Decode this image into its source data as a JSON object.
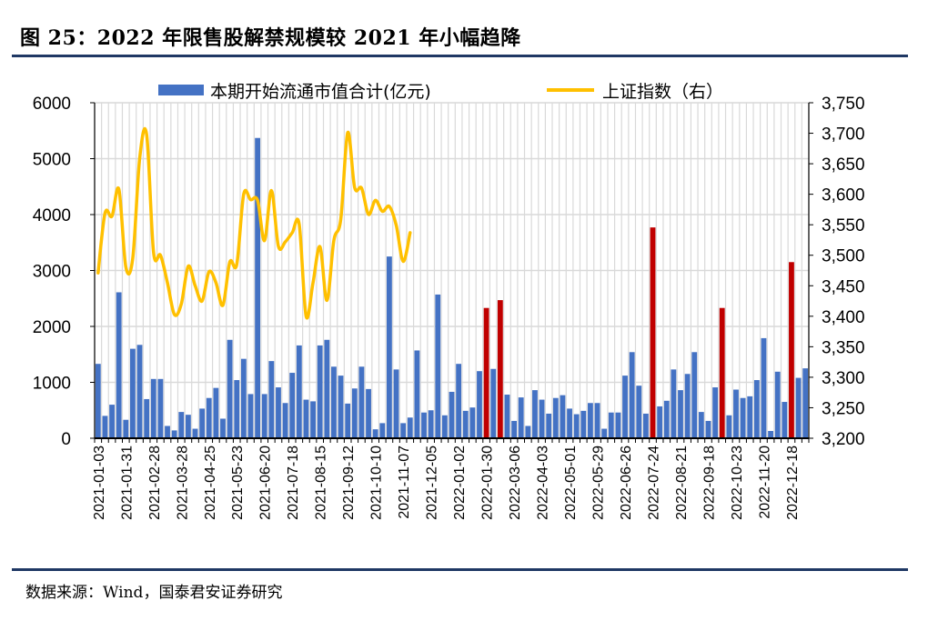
{
  "title": "图 25：2022 年限售股解禁规模较 2021 年小幅趋降",
  "source": "数据来源：Wind，国泰君安证券研究",
  "colors": {
    "bar": "#4472c4",
    "bar_highlight": "#c00000",
    "line": "#ffc000",
    "rule": "#1f3864",
    "grid": "#d9d9d9"
  },
  "chart_data": {
    "type": "bar+line",
    "title": "图 25：2022 年限售股解禁规模较 2021 年小幅趋降",
    "legend": [
      "本期开始流通市值合计(亿元)",
      "上证指数（右）"
    ],
    "legend_placement": "top",
    "grid": true,
    "left_axis": {
      "ylim": [
        0,
        6000
      ],
      "ticks": [
        "0",
        "1000",
        "2000",
        "3000",
        "4000",
        "5000",
        "6000"
      ]
    },
    "right_axis": {
      "ylim": [
        3200,
        3750
      ],
      "ticks": [
        "3,200",
        "3,250",
        "3,300",
        "3,350",
        "3,400",
        "3,450",
        "3,500",
        "3,550",
        "3,600",
        "3,650",
        "3,700",
        "3,750"
      ]
    },
    "x_tick_labels": [
      "2021-01-03",
      "2021-01-31",
      "2021-02-28",
      "2021-03-28",
      "2021-04-25",
      "2021-05-23",
      "2021-06-20",
      "2021-07-18",
      "2021-08-15",
      "2021-09-12",
      "2021-10-10",
      "2021-11-07",
      "2021-12-05",
      "2022-01-02",
      "2022-01-30",
      "2022-03-06",
      "2022-04-03",
      "2022-05-01",
      "2022-05-29",
      "2022-06-26",
      "2022-07-24",
      "2022-08-21",
      "2022-09-18",
      "2022-10-23",
      "2022-11-20",
      "2022-12-18"
    ],
    "x_tick_every": 4,
    "highlight_indices": [
      56,
      58,
      80,
      90,
      100
    ],
    "series": [
      {
        "name": "本期开始流通市值合计(亿元)",
        "type": "bar",
        "axis": "left",
        "values": [
          1330,
          400,
          600,
          2610,
          330,
          1600,
          1670,
          700,
          1060,
          1060,
          220,
          140,
          470,
          420,
          170,
          530,
          720,
          900,
          350,
          1760,
          1040,
          1420,
          790,
          5370,
          790,
          1380,
          910,
          630,
          1170,
          1660,
          690,
          660,
          1660,
          1760,
          1280,
          1120,
          620,
          890,
          1280,
          880,
          160,
          270,
          3250,
          1230,
          270,
          370,
          1570,
          460,
          500,
          2570,
          410,
          830,
          1330,
          490,
          550,
          1200,
          2330,
          1240,
          2470,
          780,
          310,
          730,
          220,
          860,
          690,
          440,
          720,
          770,
          530,
          430,
          490,
          630,
          630,
          170,
          460,
          460,
          1120,
          1540,
          940,
          440,
          3770,
          570,
          670,
          1230,
          860,
          1150,
          1540,
          470,
          310,
          910,
          2330,
          410,
          870,
          720,
          750,
          1040,
          1790,
          130,
          1190,
          650,
          3150,
          1080,
          1250
        ]
      },
      {
        "name": "上证指数（右）",
        "type": "line",
        "axis": "right",
        "values": [
          3471,
          3569,
          3564,
          3608,
          3481,
          3495,
          3659,
          3698,
          3505,
          3500,
          3455,
          3403,
          3420,
          3482,
          3450,
          3425,
          3473,
          3455,
          3418,
          3489,
          3485,
          3600,
          3591,
          3590,
          3524,
          3606,
          3515,
          3522,
          3537,
          3551,
          3400,
          3455,
          3514,
          3426,
          3524,
          3559,
          3701,
          3611,
          3610,
          3567,
          3590,
          3572,
          3580,
          3549,
          3490,
          3537
        ]
      }
    ]
  }
}
